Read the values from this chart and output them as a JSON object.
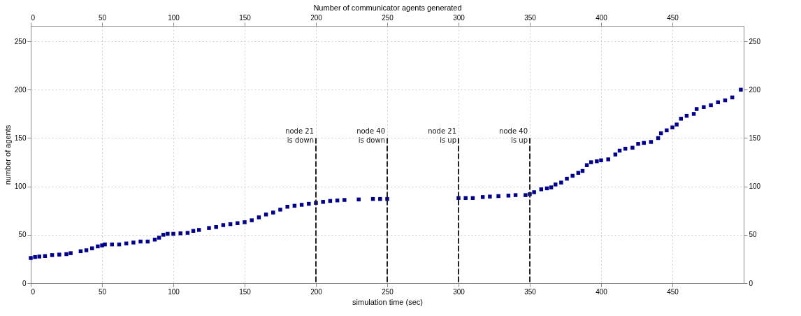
{
  "chart_data": {
    "type": "scatter",
    "xlabel": "simulation time (sec)",
    "ylabel": "number of agents",
    "x2label": "Number of communicator agents generated",
    "xlim": [
      0,
      500
    ],
    "xticks": [
      0,
      50,
      100,
      150,
      200,
      250,
      300,
      350,
      400,
      450
    ],
    "x2lim": [
      0,
      500
    ],
    "x2ticks": [
      0,
      50,
      100,
      150,
      200,
      250,
      300,
      350,
      400,
      450
    ],
    "ylim": [
      0,
      266
    ],
    "yticks": [
      0,
      50,
      100,
      150,
      200,
      250
    ],
    "y2lim": [
      0,
      266
    ],
    "y2ticks": [
      0,
      50,
      100,
      150,
      200,
      250
    ],
    "grid": true,
    "series": [
      {
        "marker": "square",
        "color": "#00008b",
        "x": [
          0,
          3,
          6,
          10,
          15,
          20,
          25,
          28,
          35,
          39,
          43,
          47,
          50,
          52,
          57,
          62,
          67,
          72,
          77,
          82,
          87,
          90,
          93,
          96,
          100,
          105,
          110,
          114,
          118,
          125,
          130,
          135,
          140,
          145,
          150,
          155,
          160,
          165,
          170,
          175,
          180,
          185,
          190,
          195,
          200,
          205,
          210,
          215,
          220,
          230,
          240,
          245,
          250,
          300,
          305,
          310,
          317,
          322,
          328,
          335,
          340,
          347,
          350,
          353,
          358,
          362,
          365,
          368,
          372,
          376,
          380,
          384,
          387,
          390,
          393,
          397,
          400,
          405,
          410,
          413,
          417,
          422,
          426,
          430,
          435,
          440,
          442,
          446,
          450,
          453,
          456,
          460,
          465,
          467,
          472,
          477,
          482,
          487,
          492,
          498
        ],
        "values": [
          26,
          27,
          27.5,
          28,
          29,
          29.5,
          30,
          31,
          33,
          34,
          36,
          38,
          39,
          40,
          40,
          40,
          41,
          42,
          43,
          43,
          45,
          47,
          50,
          51,
          51,
          51.5,
          52,
          54,
          55,
          57,
          58,
          60,
          61,
          62,
          63,
          65,
          68,
          71,
          73,
          76,
          79,
          80,
          81,
          82,
          83,
          84,
          85,
          85.5,
          86,
          86.5,
          87,
          87,
          87,
          88,
          88,
          88,
          89,
          89.5,
          90,
          90.5,
          91,
          91,
          92,
          94,
          97,
          98,
          99,
          102,
          104,
          108,
          111,
          114,
          116,
          122,
          125,
          126,
          127,
          128,
          133,
          137,
          139,
          140,
          144,
          145,
          146,
          150,
          155,
          158,
          161,
          164,
          170,
          173,
          175,
          180,
          182,
          184,
          187,
          189,
          192,
          200
        ]
      },
      {
        "type": "line",
        "line_style": "dashed",
        "marker": "none",
        "color": "#222222",
        "x": [
          200,
          200
        ],
        "values": [
          0,
          150
        ]
      },
      {
        "type": "line",
        "line_style": "dashed",
        "marker": "none",
        "color": "#222222",
        "x": [
          250,
          250
        ],
        "values": [
          0,
          150
        ]
      },
      {
        "type": "line",
        "line_style": "dashed",
        "marker": "none",
        "color": "#222222",
        "x": [
          300,
          300
        ],
        "values": [
          0,
          150
        ]
      },
      {
        "type": "line",
        "line_style": "dashed",
        "marker": "none",
        "color": "#222222",
        "x": [
          350,
          350
        ],
        "values": [
          0,
          150
        ]
      }
    ],
    "annotations": [
      {
        "text": "node 21\nis down",
        "x": 200,
        "y": 150
      },
      {
        "text": "node 40\nis down",
        "x": 250,
        "y": 150
      },
      {
        "text": "node 21\nis up",
        "x": 300,
        "y": 150
      },
      {
        "text": "node 40\nis up",
        "x": 350,
        "y": 150
      }
    ]
  }
}
